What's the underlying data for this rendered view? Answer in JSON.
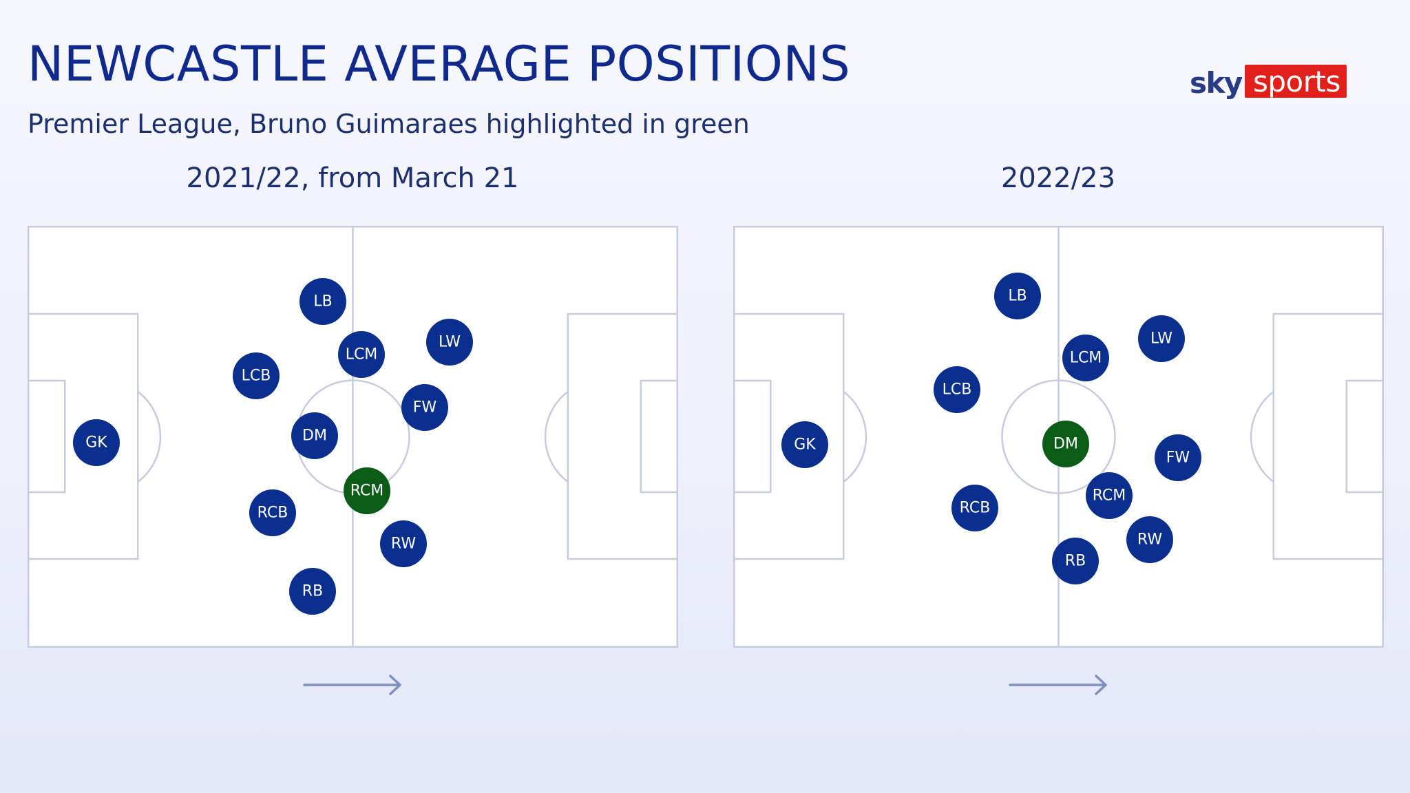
{
  "header": {
    "title": "NEWCASTLE AVERAGE POSITIONS",
    "subtitle": "Premier League, Bruno Guimaraes highlighted in green"
  },
  "logo": {
    "sky": "sky",
    "sports": "sports"
  },
  "colors": {
    "player": "#0b2f8f",
    "highlight": "#0b5c16",
    "pitch_lines": "#c6ccdd",
    "logo_red": "#e1201b",
    "arrow": "#7f8fbd"
  },
  "attack_direction": "left-to-right",
  "panels": [
    {
      "title": "2021/22, from March 21",
      "highlighted": "RCM",
      "players": [
        {
          "label": "GK"
        },
        {
          "label": "LB"
        },
        {
          "label": "LCB"
        },
        {
          "label": "LCM"
        },
        {
          "label": "LW"
        },
        {
          "label": "FW"
        },
        {
          "label": "DM"
        },
        {
          "label": "RCM"
        },
        {
          "label": "RCB"
        },
        {
          "label": "RW"
        },
        {
          "label": "RB"
        }
      ]
    },
    {
      "title": "2022/23",
      "highlighted": "DM",
      "players": [
        {
          "label": "GK"
        },
        {
          "label": "LB"
        },
        {
          "label": "LW"
        },
        {
          "label": "LCM"
        },
        {
          "label": "LCB"
        },
        {
          "label": "DM"
        },
        {
          "label": "FW"
        },
        {
          "label": "RCM"
        },
        {
          "label": "RCB"
        },
        {
          "label": "RW"
        },
        {
          "label": "RB"
        }
      ]
    }
  ]
}
